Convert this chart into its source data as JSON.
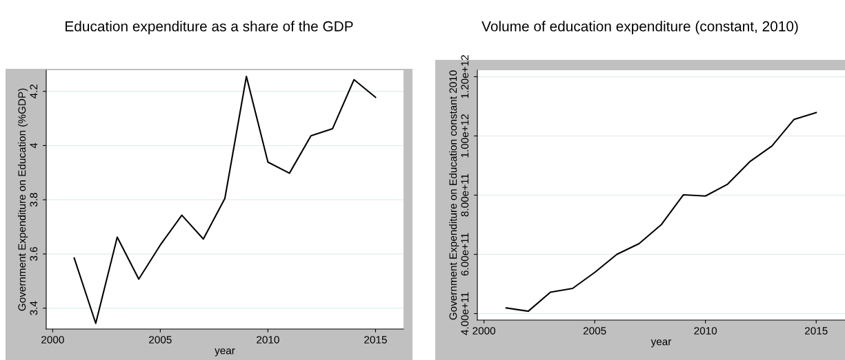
{
  "chart_data": [
    {
      "type": "line",
      "title": "Education expenditure as a share of the GDP",
      "xlabel": "year",
      "ylabel": "Government Expenditure on Education (%GDP)",
      "x": [
        2001,
        2002,
        2003,
        2004,
        2005,
        2006,
        2007,
        2008,
        2009,
        2010,
        2011,
        2012,
        2013,
        2014,
        2015
      ],
      "series": [
        {
          "color": "#000000",
          "values": [
            3.585,
            3.344,
            3.662,
            3.507,
            3.633,
            3.743,
            3.655,
            3.805,
            4.255,
            3.939,
            3.898,
            4.036,
            4.062,
            4.243,
            4.178
          ]
        }
      ],
      "xlim": [
        1999.7,
        2016.3
      ],
      "ylim": [
        3.323,
        4.278
      ],
      "xticks": [
        2000,
        2005,
        2010,
        2015
      ],
      "yticks": [
        3.4,
        3.6,
        3.8,
        4,
        4.2
      ],
      "grid": "y",
      "line_style": "solid"
    },
    {
      "type": "line",
      "title": "Volume of education expenditure (constant, 2010)",
      "xlabel": "year",
      "ylabel": "Government Expenditure on Education constant 2010",
      "x": [
        2001,
        2002,
        2003,
        2004,
        2005,
        2006,
        2007,
        2008,
        2009,
        2010,
        2011,
        2012,
        2013,
        2014,
        2015
      ],
      "series": [
        {
          "color": "#000000",
          "values": [
            419000000000.0,
            408000000000.0,
            472000000000.0,
            485000000000.0,
            539000000000.0,
            600000000000.0,
            636000000000.0,
            700000000000.0,
            801000000000.0,
            797000000000.0,
            837000000000.0,
            913000000000.0,
            966000000000.0,
            1056000000000.0,
            1079000000000.0
          ]
        }
      ],
      "xlim": [
        1999.7,
        2016.3
      ],
      "ylim": [
        378000000000.0,
        1222000000000.0
      ],
      "xticks": [
        2000,
        2005,
        2010,
        2015
      ],
      "yticks": [
        {
          "value": 400000000000.0,
          "label": "4.00e+11"
        },
        {
          "value": 600000000000.0,
          "label": "6.00e+11"
        },
        {
          "value": 800000000000.0,
          "label": "8.00e+11"
        },
        {
          "value": 1000000000000.0,
          "label": "1.00e+12"
        },
        {
          "value": 1200000000000.0,
          "label": "1.20e+12"
        }
      ],
      "grid": "y",
      "line_style": "solid"
    }
  ]
}
